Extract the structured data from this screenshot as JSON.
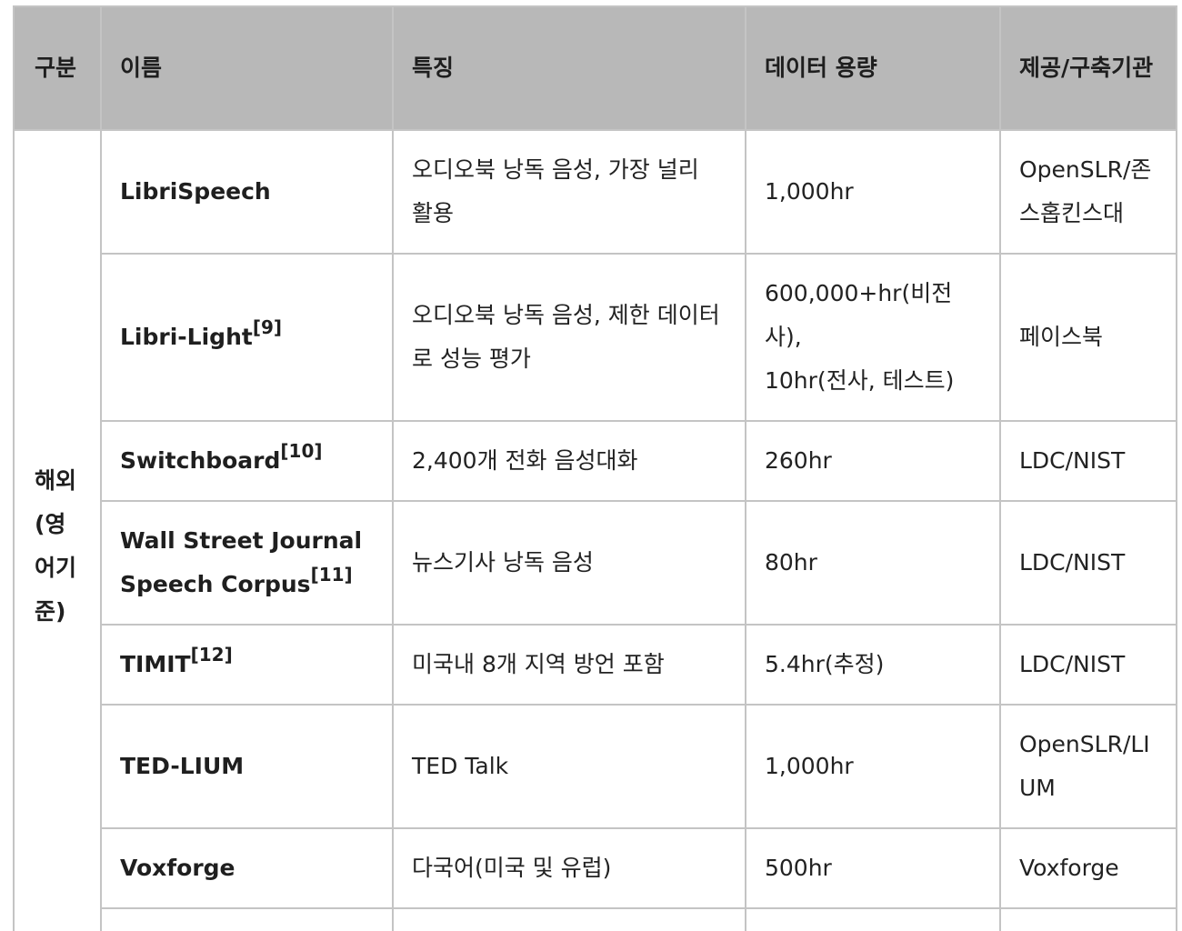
{
  "table": {
    "headers": {
      "region": "구분",
      "name": "이름",
      "features": "특징",
      "size": "데이터 용량",
      "provider": "제공/구축기관"
    },
    "region_label": "해외(영어기준)",
    "rows": [
      {
        "name": "LibriSpeech",
        "ref": "",
        "features": "오디오북 낭독 음성, 가장 널리 활용",
        "size": "1,000hr",
        "provider": "OpenSLR/존스홉킨스대"
      },
      {
        "name": "Libri-Light",
        "ref": "[9]",
        "features": "오디오북 낭독 음성, 제한 데이터로 성능 평가",
        "size_line1": "600,000+hr(비전사),",
        "size_line2": "10hr(전사, 테스트)",
        "provider": "페이스북"
      },
      {
        "name": "Switchboard",
        "ref": "[10]",
        "features": "2,400개 전화 음성대화",
        "size": "260hr",
        "provider": "LDC/NIST"
      },
      {
        "name": "Wall Street Journal Speech Corpus",
        "ref": "[11]",
        "features": "뉴스기사 낭독 음성",
        "size": "80hr",
        "provider": "LDC/NIST"
      },
      {
        "name": "TIMIT",
        "ref": "[12]",
        "features": "미국내 8개 지역 방언 포함",
        "size": "5.4hr(추정)",
        "provider": "LDC/NIST"
      },
      {
        "name": "TED-LIUM",
        "ref": "",
        "features": "TED Talk",
        "size": "1,000hr",
        "provider": "OpenSLR/LIUM"
      },
      {
        "name": "Voxforge",
        "ref": "",
        "features": "다국어(미국 및 유럽)",
        "size": "500hr",
        "provider": "Voxforge"
      }
    ]
  },
  "colors": {
    "header_background": "#b8b8b8",
    "border": "#c4c4c4",
    "text": "#222222"
  }
}
